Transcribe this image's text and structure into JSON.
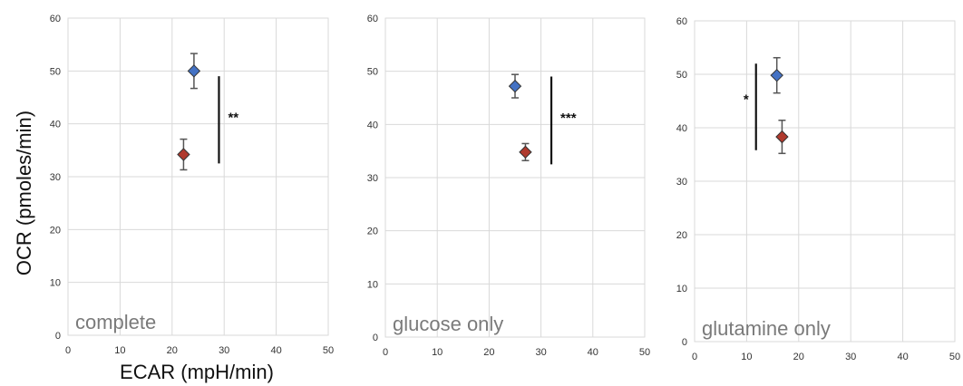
{
  "colors": {
    "blue": "#4472c4",
    "red": "#b03a2e",
    "grid": "#d9d9d9",
    "errorbar": "#555555"
  },
  "chart_data": [
    {
      "type": "scatter",
      "label": "complete",
      "xlabel": "ECAR (mpH/min)",
      "ylabel": "OCR (pmoles/min)",
      "xlim": [
        0,
        50
      ],
      "ylim": [
        0,
        60
      ],
      "xticks": [
        "0",
        "10",
        "20",
        "30",
        "40",
        "50"
      ],
      "yticks": [
        "0",
        "10",
        "20",
        "30",
        "40",
        "50",
        "60"
      ],
      "grid": true,
      "series": [
        {
          "color": "blue",
          "x": 24.2,
          "y": 50,
          "y_err": 3.3,
          "x_err": 1.0
        },
        {
          "color": "red",
          "x": 22.2,
          "y": 34.2,
          "y_err": 2.9,
          "x_err": 1.0
        }
      ],
      "significance": {
        "text": "**",
        "x": 29,
        "y_range": [
          32.5,
          49
        ]
      }
    },
    {
      "type": "scatter",
      "label": "glucose only",
      "xlabel": "",
      "ylabel": "",
      "xlim": [
        0,
        50
      ],
      "ylim": [
        0,
        60
      ],
      "xticks": [
        "0",
        "10",
        "20",
        "30",
        "40",
        "50"
      ],
      "yticks": [
        "0",
        "10",
        "20",
        "30",
        "40",
        "50",
        "60"
      ],
      "grid": true,
      "series": [
        {
          "color": "blue",
          "x": 25,
          "y": 47.2,
          "y_err": 2.2,
          "x_err": 0.9
        },
        {
          "color": "red",
          "x": 27,
          "y": 34.8,
          "y_err": 1.6,
          "x_err": 0.9
        }
      ],
      "significance": {
        "text": "***",
        "x": 32,
        "y_range": [
          32.5,
          49
        ]
      }
    },
    {
      "type": "scatter",
      "label": "glutamine only",
      "xlabel": "",
      "ylabel": "",
      "xlim": [
        0,
        50
      ],
      "ylim": [
        0,
        60
      ],
      "xticks": [
        "0",
        "10",
        "20",
        "30",
        "40",
        "50"
      ],
      "yticks": [
        "0",
        "10",
        "20",
        "30",
        "40",
        "50",
        "60"
      ],
      "grid": true,
      "series": [
        {
          "color": "blue",
          "x": 15.8,
          "y": 49.8,
          "y_err": 3.3,
          "x_err": 1.0
        },
        {
          "color": "red",
          "x": 16.8,
          "y": 38.3,
          "y_err": 3.1,
          "x_err": 1.0
        }
      ],
      "significance": {
        "text": "*",
        "x": 11.8,
        "y_range": [
          35.8,
          52
        ]
      }
    }
  ]
}
